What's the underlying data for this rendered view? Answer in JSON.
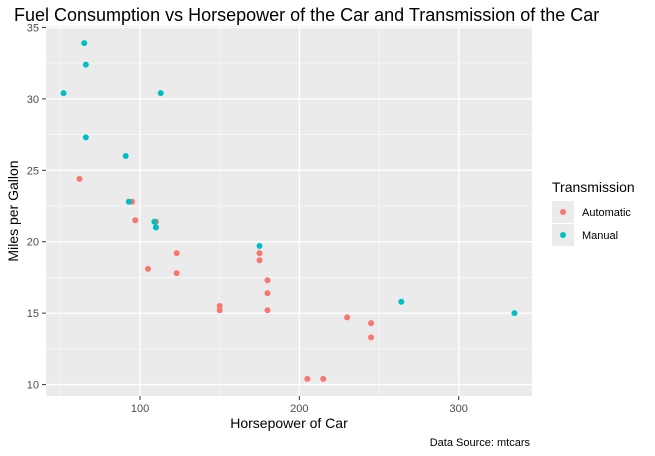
{
  "chart_data": {
    "type": "scatter",
    "title": "Fuel Consumption vs Horsepower of the Car and Transmission of the Car",
    "xlabel": "Horsepower of Car",
    "ylabel": "Miles per Gallon",
    "caption": "Data Source: mtcars",
    "xlim": [
      41,
      346
    ],
    "ylim": [
      9.2,
      35.1
    ],
    "xticks": [
      100,
      200,
      300
    ],
    "yticks": [
      10,
      15,
      20,
      25,
      30,
      35
    ],
    "xticks_text": [
      "100",
      "200",
      "300"
    ],
    "yticks_text": [
      "10",
      "15",
      "20",
      "25",
      "30",
      "35"
    ],
    "grid": true,
    "legend": {
      "title": "Transmission",
      "position": "right"
    },
    "series": [
      {
        "name": "Automatic",
        "color": "#F8766D",
        "points": [
          {
            "x": 62,
            "y": 24.4
          },
          {
            "x": 95,
            "y": 22.8
          },
          {
            "x": 97,
            "y": 21.5
          },
          {
            "x": 105,
            "y": 18.1
          },
          {
            "x": 110,
            "y": 21.4
          },
          {
            "x": 123,
            "y": 19.2
          },
          {
            "x": 123,
            "y": 17.8
          },
          {
            "x": 150,
            "y": 15.5
          },
          {
            "x": 150,
            "y": 15.2
          },
          {
            "x": 175,
            "y": 19.2
          },
          {
            "x": 175,
            "y": 18.7
          },
          {
            "x": 180,
            "y": 17.3
          },
          {
            "x": 180,
            "y": 16.4
          },
          {
            "x": 180,
            "y": 15.2
          },
          {
            "x": 205,
            "y": 10.4
          },
          {
            "x": 215,
            "y": 10.4
          },
          {
            "x": 230,
            "y": 14.7
          },
          {
            "x": 245,
            "y": 14.3
          },
          {
            "x": 245,
            "y": 13.3
          }
        ]
      },
      {
        "name": "Manual",
        "color": "#00BFC4",
        "points": [
          {
            "x": 52,
            "y": 30.4
          },
          {
            "x": 65,
            "y": 33.9
          },
          {
            "x": 66,
            "y": 32.4
          },
          {
            "x": 66,
            "y": 27.3
          },
          {
            "x": 91,
            "y": 26.0
          },
          {
            "x": 93,
            "y": 22.8
          },
          {
            "x": 109,
            "y": 21.4
          },
          {
            "x": 110,
            "y": 21.0
          },
          {
            "x": 110,
            "y": 21.0
          },
          {
            "x": 113,
            "y": 30.4
          },
          {
            "x": 175,
            "y": 19.7
          },
          {
            "x": 264,
            "y": 15.8
          },
          {
            "x": 335,
            "y": 15.0
          }
        ]
      }
    ]
  }
}
